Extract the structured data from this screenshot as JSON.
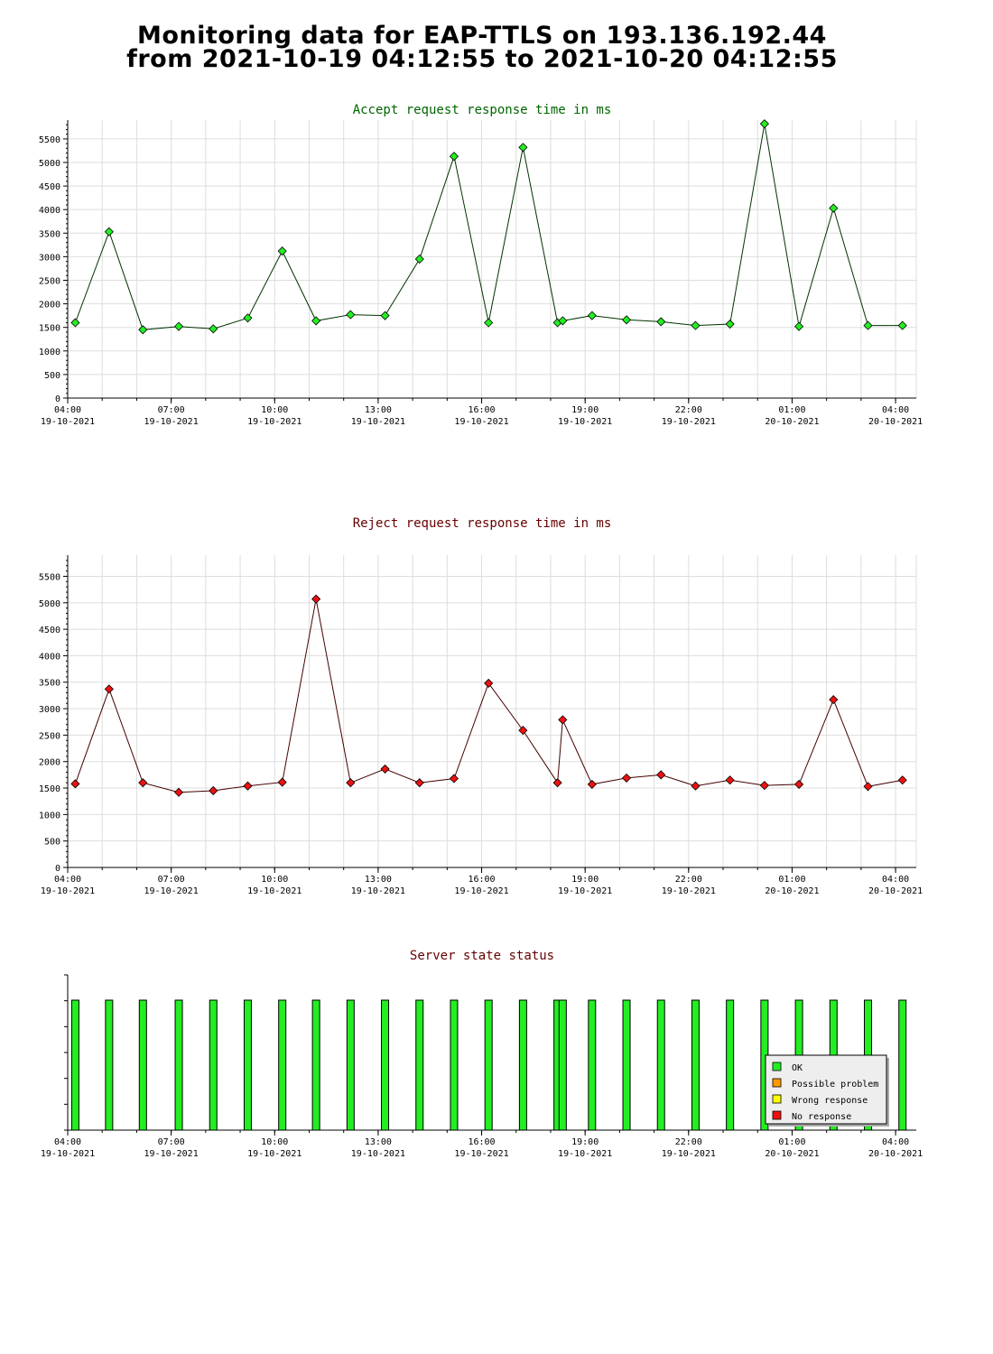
{
  "page": {
    "title_line1": "Monitoring data for EAP-TTLS on 193.136.192.44",
    "title_line2": "from 2021-10-19 04:12:55 to 2021-10-20 04:12:55"
  },
  "colors": {
    "accept_title": "#006400",
    "accept_line": "#003300",
    "accept_marker": "#22ee22",
    "reject_title": "#660000",
    "reject_line": "#440000",
    "reject_marker": "#ee1111",
    "status_title": "#660000",
    "status_bar": "#22ee22",
    "grid": "#dddddd"
  },
  "x_axis": {
    "ticks": [
      {
        "time": "04:00",
        "date": "19-10-2021",
        "h": 0
      },
      {
        "time": "07:00",
        "date": "19-10-2021",
        "h": 3
      },
      {
        "time": "10:00",
        "date": "19-10-2021",
        "h": 6
      },
      {
        "time": "13:00",
        "date": "19-10-2021",
        "h": 9
      },
      {
        "time": "16:00",
        "date": "19-10-2021",
        "h": 12
      },
      {
        "time": "19:00",
        "date": "19-10-2021",
        "h": 15
      },
      {
        "time": "22:00",
        "date": "19-10-2021",
        "h": 18
      },
      {
        "time": "01:00",
        "date": "20-10-2021",
        "h": 21
      },
      {
        "time": "04:00",
        "date": "20-10-2021",
        "h": 24
      }
    ]
  },
  "chart_data": [
    {
      "type": "line",
      "title": "Accept request response time in ms",
      "ylim": [
        0,
        5900
      ],
      "yticks": [
        0,
        500,
        1000,
        1500,
        2000,
        2500,
        3000,
        3500,
        4000,
        4500,
        5000,
        5500
      ],
      "grid": true,
      "series": [
        {
          "x": [
            0.22,
            1.2,
            2.18,
            3.22,
            4.22,
            5.22,
            6.22,
            7.2,
            8.2,
            9.2,
            10.2,
            11.2,
            12.2,
            13.2,
            14.2,
            14.35,
            15.2,
            16.2,
            17.2,
            18.2,
            19.2,
            20.2,
            21.2,
            22.2,
            23.2,
            24.2
          ],
          "values": [
            1600,
            3530,
            1450,
            1520,
            1470,
            1700,
            3120,
            1640,
            1770,
            1750,
            2950,
            5130,
            1600,
            5320,
            1600,
            1640,
            1750,
            1660,
            1620,
            1540,
            1570,
            5820,
            1520,
            4030,
            1540,
            1540
          ]
        }
      ]
    },
    {
      "type": "line",
      "title": "Reject request response time in ms",
      "ylim": [
        0,
        5900
      ],
      "yticks": [
        0,
        500,
        1000,
        1500,
        2000,
        2500,
        3000,
        3500,
        4000,
        4500,
        5000,
        5500
      ],
      "grid": true,
      "series": [
        {
          "x": [
            0.22,
            1.2,
            2.18,
            3.22,
            4.22,
            5.22,
            6.22,
            7.2,
            8.2,
            9.2,
            10.2,
            11.2,
            12.2,
            13.2,
            14.2,
            14.35,
            15.2,
            16.2,
            17.2,
            18.2,
            19.2,
            20.2,
            21.2,
            22.2,
            23.2,
            24.2
          ],
          "values": [
            1580,
            3370,
            1600,
            1420,
            1450,
            1540,
            1610,
            5070,
            1600,
            1860,
            1600,
            1680,
            3480,
            2590,
            1600,
            2790,
            1570,
            1690,
            1750,
            1540,
            1650,
            1550,
            1570,
            3170,
            1530,
            1650
          ]
        }
      ]
    },
    {
      "type": "bar",
      "title": "Server state status",
      "grid": false,
      "x": [
        0.22,
        1.2,
        2.18,
        3.22,
        4.22,
        5.22,
        6.22,
        7.2,
        8.2,
        9.2,
        10.2,
        11.2,
        12.2,
        13.2,
        14.2,
        14.35,
        15.2,
        16.2,
        17.2,
        18.2,
        19.2,
        20.2,
        21.2,
        22.2,
        23.2,
        24.2
      ],
      "status": [
        "OK",
        "OK",
        "OK",
        "OK",
        "OK",
        "OK",
        "OK",
        "OK",
        "OK",
        "OK",
        "OK",
        "OK",
        "OK",
        "OK",
        "OK",
        "OK",
        "OK",
        "OK",
        "OK",
        "OK",
        "OK",
        "OK",
        "OK",
        "OK",
        "OK",
        "OK"
      ],
      "legend": [
        {
          "label": "OK",
          "color": "#22ee22"
        },
        {
          "label": "Possible problem",
          "color": "#ff9900"
        },
        {
          "label": "Wrong response",
          "color": "#ffff00"
        },
        {
          "label": "No response",
          "color": "#ee1111"
        }
      ],
      "legend_position": "lower-right"
    }
  ]
}
